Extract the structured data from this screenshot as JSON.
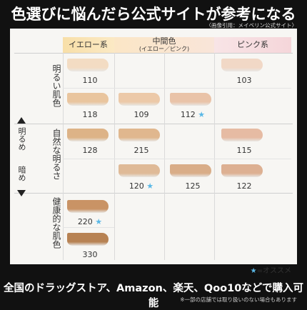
{
  "title": "色選びに悩んだら公式サイトが参考になる",
  "source": "〈画像引用：メイベリン公式サイト〉",
  "columns": {
    "yellow": "イエロー系",
    "mid": "中間色",
    "mid_sub": "(イエロー／ピンク)",
    "pink": "ピンク系"
  },
  "rows": {
    "bright": "明るい肌色",
    "natural": "自然な明るさ",
    "healthy": "健康的な肌色"
  },
  "side": {
    "bright": "明るめ",
    "dark": "暗め"
  },
  "shades": [
    {
      "code": "110",
      "star": false,
      "color": "#f3dcc3"
    },
    {
      "code": "103",
      "star": false,
      "color": "#f1d8c6"
    },
    {
      "code": "118",
      "star": false,
      "color": "#e9c59e"
    },
    {
      "code": "109",
      "star": false,
      "color": "#ecc9a8"
    },
    {
      "code": "112",
      "star": true,
      "color": "#e9c3a8"
    },
    {
      "code": "128",
      "star": false,
      "color": "#ddb387"
    },
    {
      "code": "215",
      "star": false,
      "color": "#e0b78e"
    },
    {
      "code": "115",
      "star": false,
      "color": "#e6bba3"
    },
    {
      "code": "120",
      "star": true,
      "color": "#dfba97"
    },
    {
      "code": "125",
      "star": false,
      "color": "#d9ad88"
    },
    {
      "code": "122",
      "star": false,
      "color": "#ddb092"
    },
    {
      "code": "220",
      "star": true,
      "color": "#c99365"
    },
    {
      "code": "330",
      "star": false,
      "color": "#b78253"
    }
  ],
  "star_symbol": "★",
  "legend_text": "=オススメ",
  "footer": "全国のドラッグストア、Amazon、楽天、Qoo10などで購入可能",
  "footnote": "※一部の店舗では取り扱いのない場合もあります"
}
